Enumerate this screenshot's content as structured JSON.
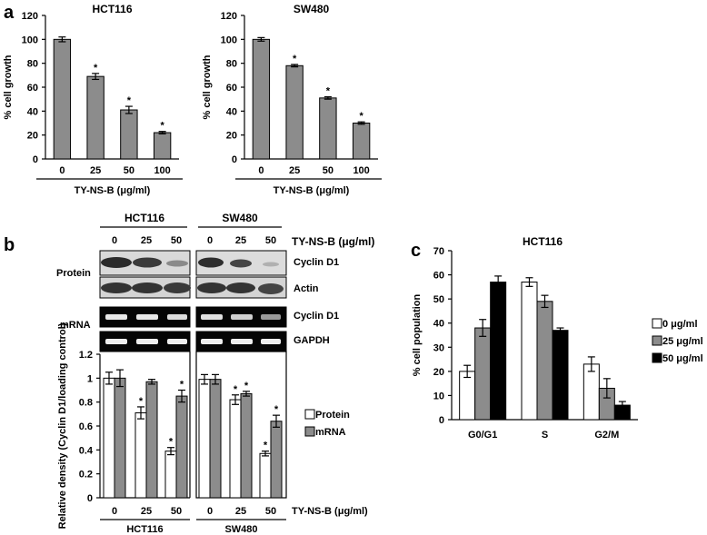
{
  "panel_letters": [
    "a",
    "b",
    "c"
  ],
  "blot": {
    "group_labels": [
      "HCT116",
      "SW480"
    ],
    "doses": [
      "0",
      "25",
      "50"
    ],
    "dose_axis_label": "TY-NS-B (μg/ml)",
    "row_group_labels": [
      "Protein",
      "mRNA"
    ],
    "band_labels": [
      "Cyclin D1",
      "Actin",
      "Cyclin D1",
      "GAPDH"
    ]
  },
  "chart_data": [
    {
      "type": "bar",
      "title": "HCT116",
      "xlabel": "TY-NS-B (μg/ml)",
      "ylabel": "% cell growth",
      "ylim": [
        0,
        120
      ],
      "yticks": [
        "0",
        "20",
        "40",
        "60",
        "80",
        "100",
        "120"
      ],
      "categories": [
        "0",
        "25",
        "50",
        "100"
      ],
      "values": [
        100,
        69,
        41,
        22
      ],
      "errors": [
        2,
        2.5,
        3,
        1
      ],
      "annotations": [
        "",
        "*",
        "*",
        "*"
      ],
      "color": "#8c8c8c"
    },
    {
      "type": "bar",
      "title": "SW480",
      "xlabel": "TY-NS-B (μg/ml)",
      "ylabel": "% cell growth",
      "ylim": [
        0,
        120
      ],
      "yticks": [
        "0",
        "20",
        "40",
        "60",
        "80",
        "100",
        "120"
      ],
      "categories": [
        "0",
        "25",
        "50",
        "100"
      ],
      "values": [
        100,
        78,
        51,
        30
      ],
      "errors": [
        1.5,
        1,
        1,
        1
      ],
      "annotations": [
        "",
        "*",
        "*",
        "*"
      ],
      "color": "#8c8c8c"
    },
    {
      "type": "bar",
      "title": "",
      "ylabel": "Relative density (Cyclin D1/loading control)",
      "xlabel": "TY-NS-B (μg/ml)",
      "ylim": [
        0,
        1.2
      ],
      "yticks": [
        "0",
        "0.2",
        "0.4",
        "0.6",
        "0.8",
        "1",
        "1.2"
      ],
      "groups": [
        {
          "name": "HCT116",
          "categories": [
            "0",
            "25",
            "50"
          ],
          "series": [
            {
              "name": "Protein",
              "values": [
                1.0,
                0.71,
                0.39
              ],
              "errors": [
                0.05,
                0.05,
                0.03
              ],
              "annotations": [
                "",
                "*",
                "*"
              ]
            },
            {
              "name": "mRNA",
              "values": [
                1.0,
                0.97,
                0.85
              ],
              "errors": [
                0.07,
                0.02,
                0.05
              ],
              "annotations": [
                "",
                "",
                "*"
              ]
            }
          ]
        },
        {
          "name": "SW480",
          "categories": [
            "0",
            "25",
            "50"
          ],
          "series": [
            {
              "name": "Protein",
              "values": [
                0.99,
                0.82,
                0.37
              ],
              "errors": [
                0.04,
                0.04,
                0.02
              ],
              "annotations": [
                "",
                "*",
                "*"
              ]
            },
            {
              "name": "mRNA",
              "values": [
                0.99,
                0.87,
                0.64
              ],
              "errors": [
                0.04,
                0.02,
                0.05
              ],
              "annotations": [
                "",
                "*",
                "*"
              ]
            }
          ]
        }
      ],
      "legend": [
        "Protein",
        "mRNA"
      ],
      "legend_position": "right",
      "colors": {
        "Protein": "#ffffff",
        "mRNA": "#8c8c8c"
      }
    },
    {
      "type": "bar",
      "title": "HCT116",
      "ylabel": "% cell population",
      "xlabel": "",
      "ylim": [
        0,
        70
      ],
      "yticks": [
        "0",
        "10",
        "20",
        "30",
        "40",
        "50",
        "60",
        "70"
      ],
      "categories": [
        "G0/G1",
        "S",
        "G2/M"
      ],
      "series": [
        {
          "name": "0 μg/ml",
          "values": [
            20,
            57,
            23
          ],
          "errors": [
            2.5,
            1.8,
            3
          ]
        },
        {
          "name": "25 μg/ml",
          "values": [
            38,
            49,
            13
          ],
          "errors": [
            3.5,
            2.5,
            4
          ]
        },
        {
          "name": "50 μg/ml",
          "values": [
            57,
            37,
            6
          ],
          "errors": [
            2.5,
            1,
            1.5
          ]
        }
      ],
      "legend_position": "right",
      "colors": [
        "#ffffff",
        "#8c8c8c",
        "#000000"
      ]
    }
  ]
}
